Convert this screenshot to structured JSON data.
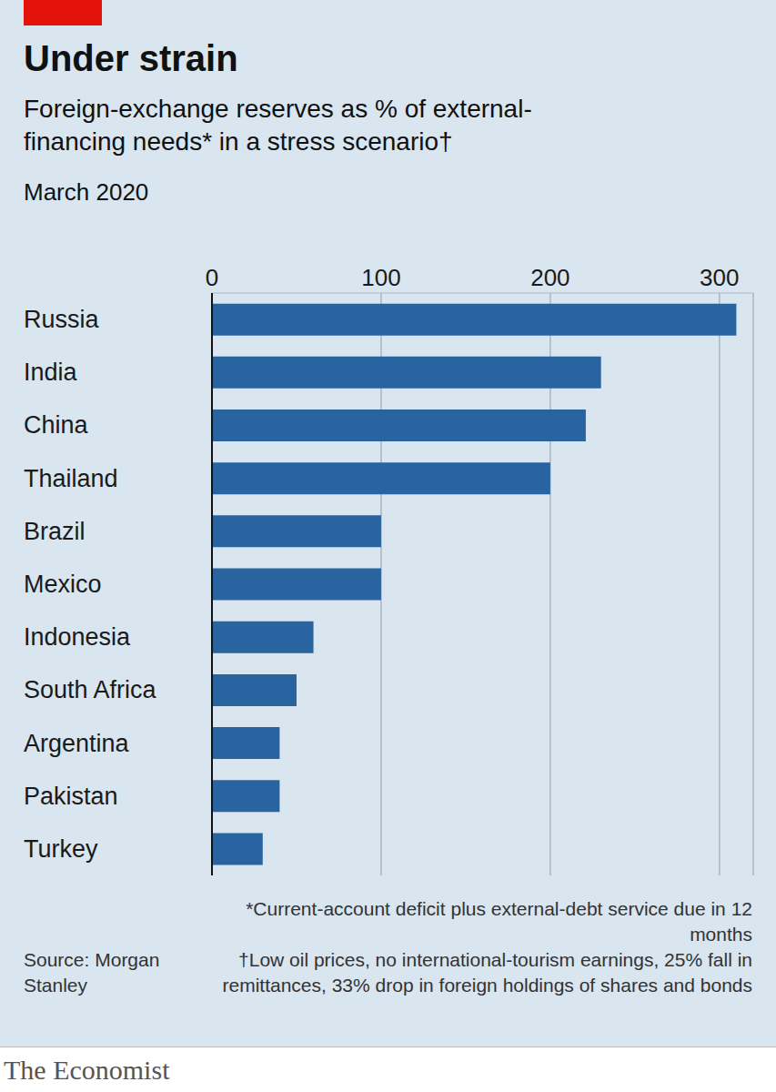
{
  "chart_data": {
    "type": "bar",
    "orientation": "horizontal",
    "title": "Under strain",
    "subtitle": "Foreign-exchange reserves as % of external-financing needs* in a stress scenario†",
    "date": "March 2020",
    "categories": [
      "Russia",
      "India",
      "China",
      "Thailand",
      "Brazil",
      "Mexico",
      "Indonesia",
      "South Africa",
      "Argentina",
      "Pakistan",
      "Turkey"
    ],
    "values": [
      310,
      230,
      221,
      200,
      100,
      100,
      60,
      50,
      40,
      40,
      30
    ],
    "color": "#2a64a0",
    "xlim": [
      0,
      320
    ],
    "xticks": [
      0,
      100,
      200,
      300
    ],
    "grid": true,
    "notes": [
      "*Current-account deficit plus external-debt service due in 12 months",
      "†Low oil prices, no international-tourism earnings, 25% fall in remittances, 33% drop in foreign holdings of shares and bonds"
    ],
    "source": "Source: Morgan Stanley",
    "brand": "The Economist"
  }
}
